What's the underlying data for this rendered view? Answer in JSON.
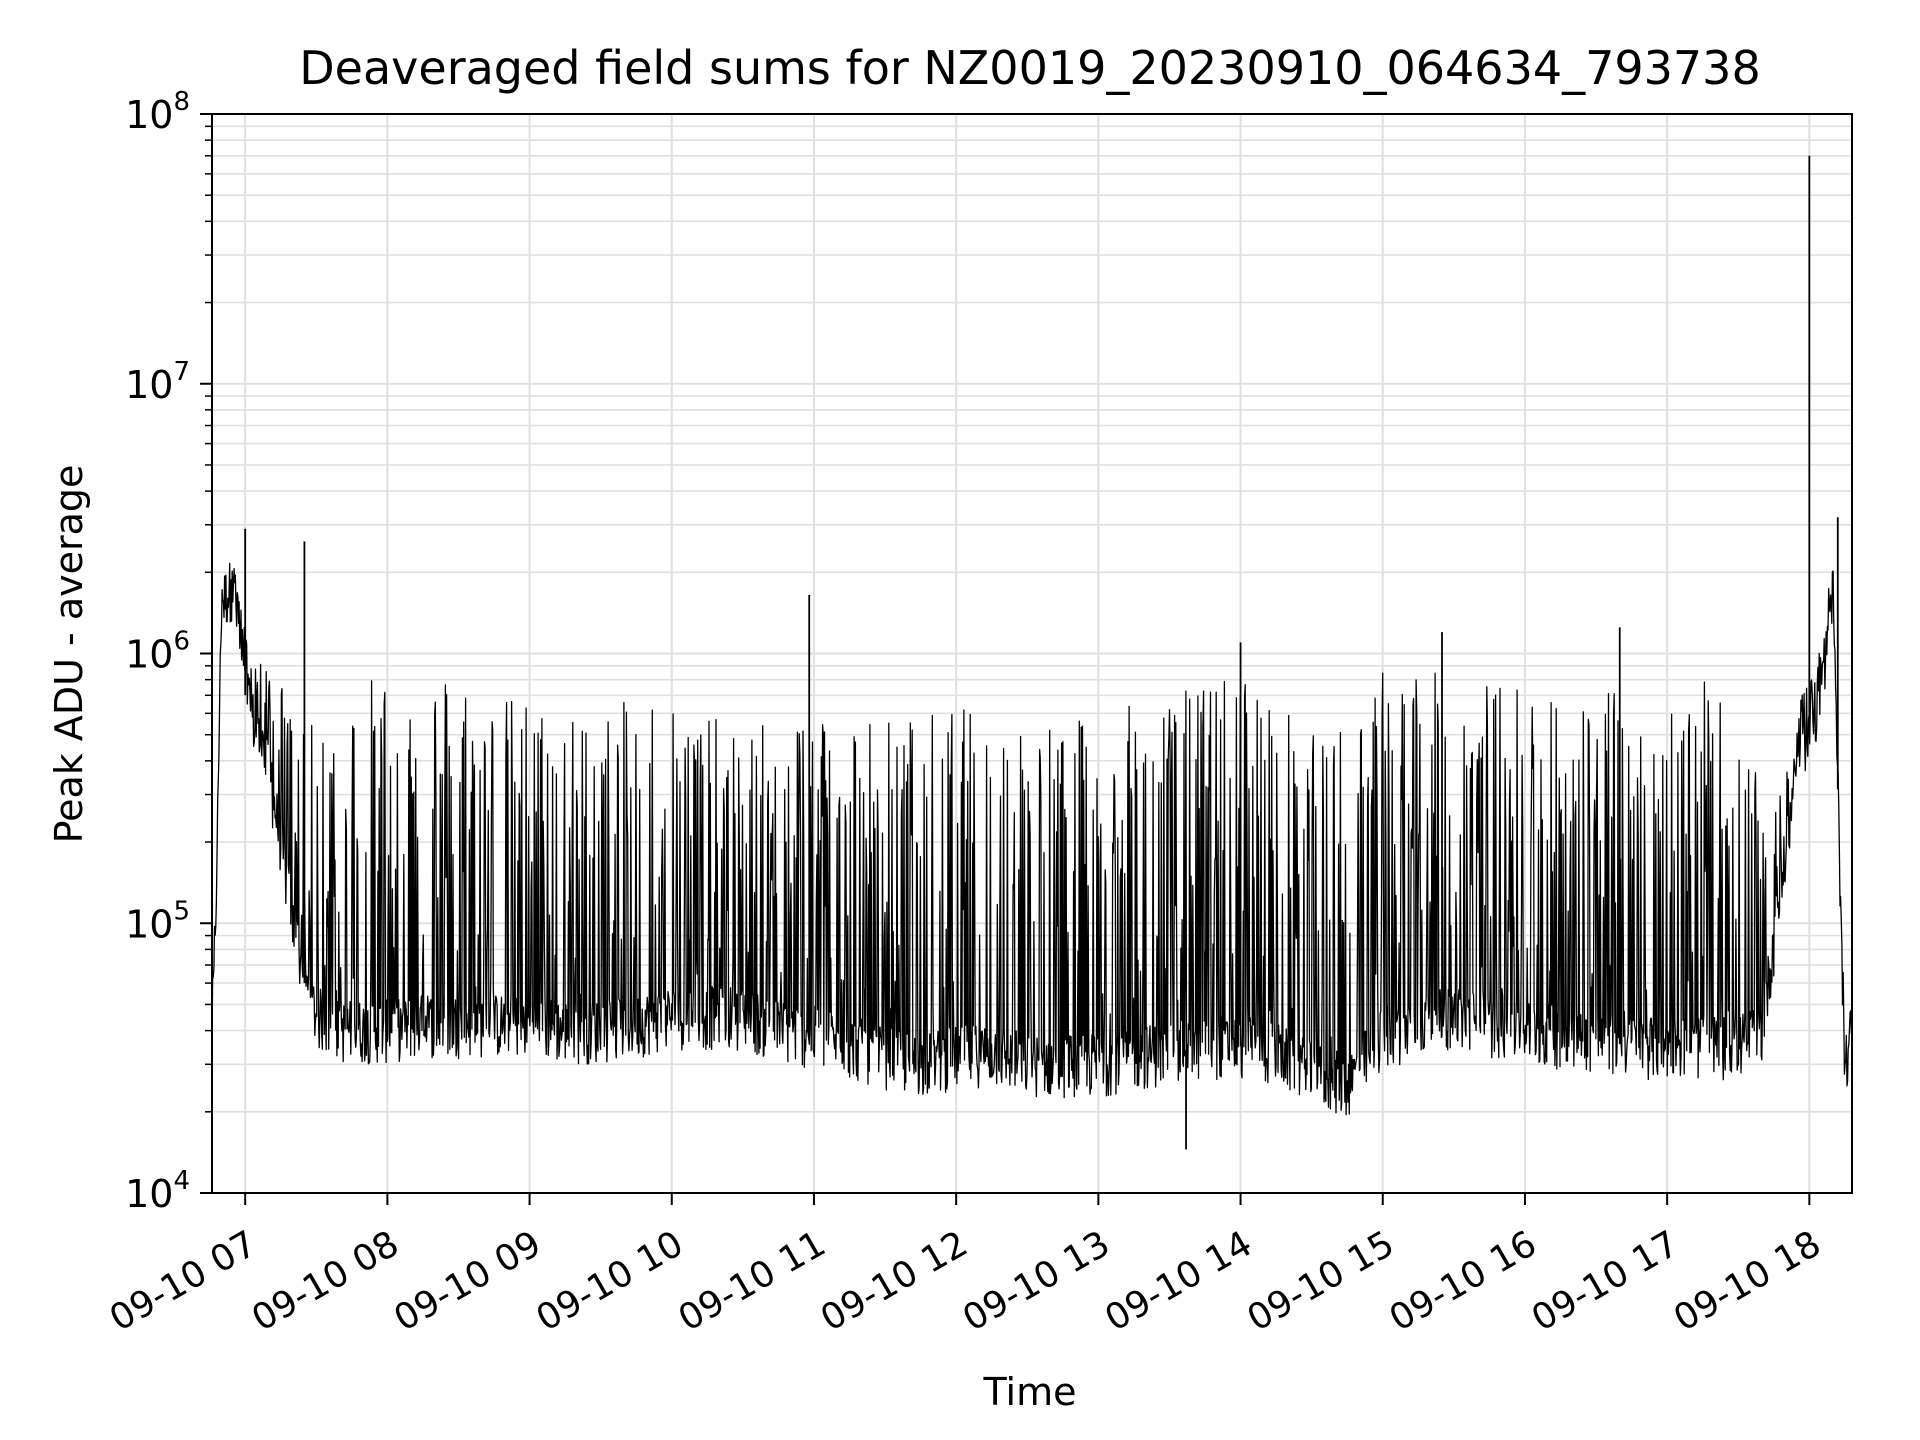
{
  "chart_data": {
    "type": "line",
    "title": "Deaveraged field sums for NZ0019_20230910_064634_793738",
    "xlabel": "Time",
    "ylabel": "Peak ADU - average",
    "yscale": "log",
    "ylim": [
      10000,
      100000000
    ],
    "xlim": [
      "2023-09-10 06:46",
      "2023-09-10 18:18"
    ],
    "grid": {
      "major": true,
      "minor_y": true
    },
    "line_color": "#000000",
    "grid_color": "#e0e0e0",
    "x_ticks": [
      "09-10 07",
      "09-10 08",
      "09-10 09",
      "09-10 10",
      "09-10 11",
      "09-10 12",
      "09-10 13",
      "09-10 14",
      "09-10 15",
      "09-10 16",
      "09-10 17",
      "09-10 18"
    ],
    "y_ticks": [
      {
        "base": "10",
        "exp": "4"
      },
      {
        "base": "10",
        "exp": "5"
      },
      {
        "base": "10",
        "exp": "6"
      },
      {
        "base": "10",
        "exp": "7"
      },
      {
        "base": "10",
        "exp": "8"
      }
    ],
    "series": [
      {
        "x": [
          "06:46",
          "06:48",
          "06:50",
          "06:55",
          "07:00",
          "07:05",
          "07:10",
          "07:15",
          "07:20",
          "07:25",
          "07:30",
          "07:40",
          "07:50",
          "08:00",
          "08:15",
          "08:30",
          "08:45",
          "09:00",
          "09:15",
          "09:30",
          "09:45",
          "10:00",
          "10:15",
          "10:30",
          "10:45",
          "11:00",
          "11:15",
          "11:30",
          "11:45",
          "12:00",
          "12:15",
          "12:30",
          "12:45",
          "13:00",
          "13:15",
          "13:30",
          "13:45",
          "14:00",
          "14:15",
          "14:30",
          "14:45",
          "15:00",
          "15:15",
          "15:30",
          "15:45",
          "16:00",
          "16:15",
          "16:30",
          "16:45",
          "17:00",
          "17:15",
          "17:30",
          "17:40",
          "17:50",
          "17:55",
          "18:00",
          "18:05",
          "18:10",
          "18:15",
          "18:18"
        ],
        "values": [
          40000,
          150000,
          1500000,
          1800000,
          700000,
          500000,
          350000,
          200000,
          100000,
          60000,
          45000,
          40000,
          40000,
          40000,
          42000,
          42000,
          42000,
          42000,
          40000,
          40000,
          42000,
          45000,
          45000,
          45000,
          40000,
          38000,
          35000,
          32000,
          30000,
          32000,
          33000,
          30000,
          30000,
          30000,
          32000,
          33000,
          35000,
          35000,
          33000,
          28000,
          25000,
          38000,
          42000,
          45000,
          42000,
          40000,
          38000,
          37000,
          35000,
          35000,
          35000,
          35000,
          40000,
          180000,
          400000,
          500000,
          700000,
          1500000,
          30000,
          40000
        ],
        "ceiling": [
          40000,
          150000,
          2000000,
          2500000,
          1200000,
          1000000,
          900000,
          800000,
          600000,
          500000,
          600000,
          700000,
          800000,
          900000,
          950000,
          900000,
          700000,
          700000,
          600000,
          600000,
          700000,
          800000,
          600000,
          500000,
          600000,
          700000,
          650000,
          600000,
          600000,
          650000,
          600000,
          600000,
          550000,
          600000,
          650000,
          700000,
          800000,
          900000,
          700000,
          500000,
          600000,
          900000,
          900000,
          800000,
          800000,
          800000,
          800000,
          700000,
          800000,
          800000,
          800000,
          600000,
          300000,
          400000,
          600000,
          900000,
          1200000,
          2200000,
          30000,
          40000
        ],
        "peaks": [
          {
            "x": "07:00",
            "y": 2900000
          },
          {
            "x": "07:25",
            "y": 2600000
          },
          {
            "x": "10:58",
            "y": 1650000
          },
          {
            "x": "14:00",
            "y": 1100000
          },
          {
            "x": "15:25",
            "y": 1200000
          },
          {
            "x": "16:40",
            "y": 1250000
          },
          {
            "x": "18:00",
            "y": 70000000
          },
          {
            "x": "18:12",
            "y": 3200000
          },
          {
            "x": "13:37",
            "y": 14500
          }
        ]
      }
    ]
  }
}
